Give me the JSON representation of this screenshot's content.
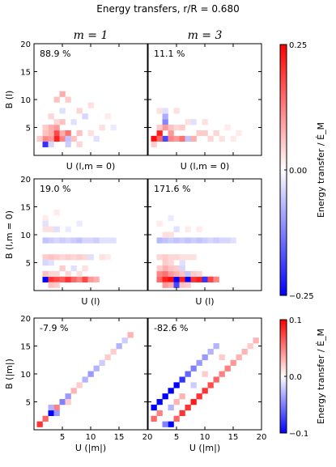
{
  "figure": {
    "title": "Energy transfers, r/R = 0.680"
  },
  "columns": [
    "m = 1",
    "m = 3"
  ],
  "colorbars": [
    {
      "label": "Energy transfer / Ė_M",
      "ticks": [
        "0.25",
        "0.00",
        "−0.25"
      ],
      "range": [
        -0.25,
        0.25
      ],
      "colors": {
        "neg": "#0000ff",
        "mid": "#ffffff",
        "pos": "#ff0000"
      }
    },
    {
      "label": "Energy transfer / Ė_M",
      "ticks": [
        "0.1",
        "0.0",
        "−0.1"
      ],
      "range": [
        -0.1,
        0.1
      ],
      "colors": {
        "neg": "#0000ff",
        "mid": "#ffffff",
        "pos": "#ff0000"
      }
    }
  ],
  "chart_data": [
    {
      "type": "heatmap",
      "row": 0,
      "col": 0,
      "annotation": "88.9 %",
      "xlabel": "U (l,m = 0)",
      "ylabel": "B (l)",
      "xlim": [
        0,
        20
      ],
      "ylim": [
        0,
        20
      ],
      "yticks": [
        "5",
        "10",
        "15",
        "20"
      ],
      "xticks": [],
      "vrange": [
        -0.25,
        0.25
      ],
      "cells": [
        [
          4,
          3,
          0.22
        ],
        [
          4,
          4,
          0.18
        ],
        [
          5,
          3,
          0.12
        ],
        [
          4,
          5,
          0.1
        ],
        [
          5,
          4,
          0.08
        ],
        [
          2,
          2,
          -0.2
        ],
        [
          2,
          3,
          0.12
        ],
        [
          3,
          3,
          0.1
        ],
        [
          3,
          4,
          0.08
        ],
        [
          6,
          4,
          0.14
        ],
        [
          6,
          3,
          -0.06
        ],
        [
          7,
          3,
          0.06
        ],
        [
          3,
          5,
          0.08
        ],
        [
          5,
          6,
          0.06
        ],
        [
          8,
          4,
          0.06
        ],
        [
          5,
          11,
          0.08
        ],
        [
          6,
          10,
          0.05
        ],
        [
          4,
          10,
          0.06
        ],
        [
          2,
          5,
          0.05
        ],
        [
          3,
          7,
          0.04
        ],
        [
          8,
          8,
          0.04
        ],
        [
          10,
          9,
          0.03
        ],
        [
          9,
          7,
          -0.04
        ],
        [
          7,
          6,
          -0.03
        ],
        [
          6,
          2,
          -0.05
        ],
        [
          3,
          2,
          -0.04
        ],
        [
          1,
          3,
          0.05
        ],
        [
          2,
          4,
          0.06
        ],
        [
          4,
          6,
          0.04
        ],
        [
          5,
          8,
          -0.03
        ],
        [
          8,
          2,
          0.04
        ],
        [
          10,
          4,
          0.03
        ],
        [
          11,
          3,
          -0.03
        ],
        [
          12,
          5,
          0.03
        ],
        [
          13,
          7,
          0.02
        ],
        [
          14,
          5,
          -0.02
        ]
      ]
    },
    {
      "type": "heatmap",
      "row": 0,
      "col": 1,
      "annotation": "11.1 %",
      "xlabel": "U (l,m = 0)",
      "ylabel": "",
      "xlim": [
        0,
        20
      ],
      "ylim": [
        0,
        20
      ],
      "yticks": [],
      "xticks": [],
      "vrange": [
        -0.25,
        0.25
      ],
      "cells": [
        [
          1,
          3,
          0.24
        ],
        [
          2,
          4,
          0.22
        ],
        [
          3,
          3,
          -0.18
        ],
        [
          2,
          3,
          0.15
        ],
        [
          3,
          6,
          -0.12
        ],
        [
          3,
          5,
          0.1
        ],
        [
          4,
          3,
          0.12
        ],
        [
          4,
          4,
          0.1
        ],
        [
          5,
          3,
          0.1
        ],
        [
          6,
          3,
          0.14
        ],
        [
          7,
          3,
          -0.06
        ],
        [
          3,
          7,
          -0.08
        ],
        [
          4,
          5,
          0.06
        ],
        [
          2,
          5,
          0.05
        ],
        [
          5,
          5,
          0.04
        ],
        [
          6,
          5,
          0.05
        ],
        [
          8,
          3,
          0.08
        ],
        [
          9,
          4,
          0.05
        ],
        [
          10,
          4,
          0.05
        ],
        [
          11,
          3,
          0.04
        ],
        [
          12,
          4,
          0.04
        ],
        [
          13,
          3,
          0.03
        ],
        [
          2,
          8,
          0.03
        ],
        [
          3,
          8,
          -0.03
        ],
        [
          5,
          8,
          0.03
        ],
        [
          7,
          6,
          0.03
        ],
        [
          8,
          6,
          -0.03
        ],
        [
          10,
          6,
          0.03
        ],
        [
          14,
          5,
          0.02
        ],
        [
          15,
          3,
          0.02
        ],
        [
          16,
          4,
          0.02
        ],
        [
          1,
          2,
          0.05
        ]
      ]
    },
    {
      "type": "heatmap",
      "row": 1,
      "col": 0,
      "annotation": "19.0 %",
      "xlabel": "U (l)",
      "ylabel": "B (l,m = 0)",
      "xlim": [
        0,
        20
      ],
      "ylim": [
        0,
        20
      ],
      "yticks": [
        "5",
        "10",
        "15",
        "20"
      ],
      "xticks": [],
      "vrange": [
        -0.25,
        0.25
      ],
      "cells": [
        [
          2,
          2,
          -0.25
        ],
        [
          3,
          2,
          0.2
        ],
        [
          4,
          2,
          0.18
        ],
        [
          5,
          2,
          0.16
        ],
        [
          6,
          2,
          0.2
        ],
        [
          7,
          2,
          0.15
        ],
        [
          8,
          2,
          0.12
        ],
        [
          9,
          2,
          0.18
        ],
        [
          10,
          2,
          0.1
        ],
        [
          11,
          2,
          0.08
        ],
        [
          3,
          1,
          0.06
        ],
        [
          4,
          1,
          0.05
        ],
        [
          2,
          3,
          0.06
        ],
        [
          3,
          3,
          0.04
        ],
        [
          4,
          3,
          0.04
        ],
        [
          6,
          3,
          0.04
        ],
        [
          8,
          3,
          0.03
        ],
        [
          2,
          6,
          0.05
        ],
        [
          3,
          6,
          0.06
        ],
        [
          4,
          6,
          0.05
        ],
        [
          5,
          6,
          0.04
        ],
        [
          6,
          6,
          0.05
        ],
        [
          7,
          6,
          0.04
        ],
        [
          8,
          6,
          0.05
        ],
        [
          9,
          6,
          0.04
        ],
        [
          10,
          6,
          -0.03
        ],
        [
          2,
          9,
          -0.06
        ],
        [
          3,
          9,
          -0.05
        ],
        [
          4,
          9,
          -0.04
        ],
        [
          5,
          9,
          -0.05
        ],
        [
          6,
          9,
          -0.04
        ],
        [
          7,
          9,
          -0.05
        ],
        [
          8,
          9,
          -0.06
        ],
        [
          9,
          9,
          -0.04
        ],
        [
          10,
          9,
          -0.04
        ],
        [
          11,
          9,
          -0.05
        ],
        [
          12,
          9,
          -0.03
        ],
        [
          13,
          9,
          -0.03
        ],
        [
          14,
          9,
          -0.03
        ],
        [
          2,
          11,
          0.03
        ],
        [
          3,
          11,
          0.03
        ],
        [
          4,
          11,
          -0.03
        ],
        [
          6,
          11,
          -0.02
        ],
        [
          2,
          5,
          -0.04
        ],
        [
          3,
          5,
          -0.03
        ],
        [
          5,
          4,
          0.05
        ],
        [
          7,
          4,
          -0.03
        ],
        [
          9,
          4,
          0.03
        ],
        [
          2,
          12,
          -0.03
        ],
        [
          2,
          13,
          0.02
        ],
        [
          4,
          14,
          0.02
        ],
        [
          8,
          12,
          -0.02
        ],
        [
          12,
          6,
          0.03
        ],
        [
          13,
          6,
          0.02
        ]
      ]
    },
    {
      "type": "heatmap",
      "row": 1,
      "col": 1,
      "annotation": "171.6 %",
      "xlabel": "U (l)",
      "ylabel": "",
      "xlim": [
        0,
        20
      ],
      "ylim": [
        0,
        20
      ],
      "yticks": [],
      "xticks": [],
      "vrange": [
        -0.25,
        0.25
      ],
      "cells": [
        [
          2,
          2,
          0.15
        ],
        [
          3,
          2,
          0.22
        ],
        [
          4,
          2,
          0.24
        ],
        [
          5,
          2,
          -0.25
        ],
        [
          6,
          2,
          0.22
        ],
        [
          7,
          2,
          -0.25
        ],
        [
          8,
          2,
          0.2
        ],
        [
          9,
          2,
          0.22
        ],
        [
          10,
          2,
          -0.2
        ],
        [
          11,
          2,
          0.18
        ],
        [
          12,
          2,
          0.12
        ],
        [
          3,
          1,
          0.1
        ],
        [
          4,
          1,
          0.08
        ],
        [
          5,
          1,
          -0.18
        ],
        [
          6,
          1,
          0.06
        ],
        [
          7,
          1,
          0.05
        ],
        [
          2,
          3,
          0.12
        ],
        [
          3,
          3,
          0.14
        ],
        [
          4,
          3,
          0.1
        ],
        [
          5,
          3,
          0.08
        ],
        [
          6,
          3,
          0.06
        ],
        [
          7,
          3,
          -0.06
        ],
        [
          8,
          3,
          0.05
        ],
        [
          9,
          3,
          0.04
        ],
        [
          3,
          4,
          0.08
        ],
        [
          4,
          4,
          0.06
        ],
        [
          5,
          4,
          0.05
        ],
        [
          6,
          4,
          -0.04
        ],
        [
          2,
          4,
          0.05
        ],
        [
          3,
          5,
          0.05
        ],
        [
          4,
          5,
          0.04
        ],
        [
          6,
          5,
          -0.03
        ],
        [
          2,
          6,
          0.04
        ],
        [
          3,
          6,
          0.05
        ],
        [
          4,
          6,
          0.04
        ],
        [
          5,
          6,
          0.04
        ],
        [
          6,
          6,
          0.03
        ],
        [
          7,
          6,
          0.03
        ],
        [
          8,
          6,
          0.03
        ],
        [
          2,
          9,
          -0.07
        ],
        [
          3,
          9,
          -0.06
        ],
        [
          4,
          9,
          -0.05
        ],
        [
          5,
          9,
          -0.06
        ],
        [
          6,
          9,
          -0.05
        ],
        [
          7,
          9,
          -0.06
        ],
        [
          8,
          9,
          -0.05
        ],
        [
          9,
          9,
          -0.06
        ],
        [
          10,
          9,
          -0.05
        ],
        [
          11,
          9,
          -0.04
        ],
        [
          12,
          9,
          -0.05
        ],
        [
          13,
          9,
          -0.04
        ],
        [
          14,
          9,
          -0.04
        ],
        [
          15,
          9,
          -0.03
        ],
        [
          3,
          10,
          0.03
        ],
        [
          4,
          10,
          0.03
        ],
        [
          5,
          11,
          -0.03
        ],
        [
          7,
          11,
          0.02
        ],
        [
          2,
          12,
          0.02
        ],
        [
          4,
          13,
          -0.02
        ],
        [
          9,
          11,
          0.02
        ]
      ]
    },
    {
      "type": "heatmap",
      "row": 2,
      "col": 0,
      "annotation": "-7.9 %",
      "xlabel": "U (|m|)",
      "ylabel": "B (|m|)",
      "xlim": [
        0,
        20
      ],
      "ylim": [
        0,
        20
      ],
      "yticks": [
        "5",
        "10",
        "15",
        "20"
      ],
      "xticks": [
        "5",
        "10",
        "15",
        "20"
      ],
      "vrange": [
        -0.1,
        0.1
      ],
      "cells": [
        [
          1,
          1,
          0.08
        ],
        [
          2,
          2,
          0.06
        ],
        [
          3,
          3,
          -0.1
        ],
        [
          4,
          4,
          0.05
        ],
        [
          5,
          5,
          -0.05
        ],
        [
          6,
          6,
          -0.04
        ],
        [
          7,
          7,
          0.03
        ],
        [
          8,
          8,
          0.02
        ],
        [
          10,
          10,
          -0.04
        ],
        [
          11,
          11,
          -0.03
        ],
        [
          12,
          12,
          -0.02
        ],
        [
          13,
          13,
          0.02
        ],
        [
          15,
          15,
          -0.03
        ],
        [
          16,
          16,
          -0.02
        ],
        [
          17,
          17,
          0.03
        ],
        [
          3,
          4,
          -0.03
        ],
        [
          4,
          3,
          -0.04
        ],
        [
          6,
          5,
          0.02
        ],
        [
          9,
          9,
          -0.03
        ],
        [
          14,
          14,
          0.02
        ]
      ]
    },
    {
      "type": "heatmap",
      "row": 2,
      "col": 1,
      "annotation": "-82.6 %",
      "xlabel": "U (|m|)",
      "ylabel": "",
      "xlim": [
        0,
        20
      ],
      "ylim": [
        0,
        20
      ],
      "yticks": [],
      "xticks": [
        "5",
        "10",
        "15",
        "20"
      ],
      "vrange": [
        -0.1,
        0.1
      ],
      "cells": [
        [
          1,
          4,
          -0.1
        ],
        [
          2,
          5,
          -0.1
        ],
        [
          3,
          6,
          -0.1
        ],
        [
          4,
          7,
          -0.1
        ],
        [
          5,
          8,
          -0.1
        ],
        [
          6,
          9,
          -0.08
        ],
        [
          7,
          10,
          -0.06
        ],
        [
          8,
          11,
          -0.05
        ],
        [
          9,
          12,
          -0.04
        ],
        [
          10,
          13,
          -0.04
        ],
        [
          11,
          14,
          -0.03
        ],
        [
          12,
          15,
          -0.03
        ],
        [
          4,
          1,
          -0.1
        ],
        [
          5,
          2,
          0.06
        ],
        [
          6,
          3,
          0.08
        ],
        [
          7,
          4,
          0.08
        ],
        [
          8,
          5,
          0.09
        ],
        [
          9,
          6,
          0.08
        ],
        [
          10,
          7,
          0.08
        ],
        [
          11,
          8,
          0.07
        ],
        [
          12,
          9,
          0.06
        ],
        [
          13,
          10,
          0.05
        ],
        [
          14,
          11,
          0.05
        ],
        [
          15,
          12,
          0.04
        ],
        [
          16,
          13,
          0.03
        ],
        [
          17,
          14,
          0.03
        ],
        [
          18,
          15,
          0.02
        ],
        [
          19,
          16,
          0.03
        ],
        [
          1,
          2,
          0.06
        ],
        [
          2,
          3,
          0.05
        ],
        [
          3,
          1,
          -0.05
        ],
        [
          6,
          6,
          0.03
        ],
        [
          8,
          8,
          -0.02
        ],
        [
          10,
          10,
          0.02
        ],
        [
          13,
          13,
          0.02
        ],
        [
          4,
          4,
          -0.03
        ],
        [
          5,
          5,
          0.03
        ]
      ]
    }
  ]
}
